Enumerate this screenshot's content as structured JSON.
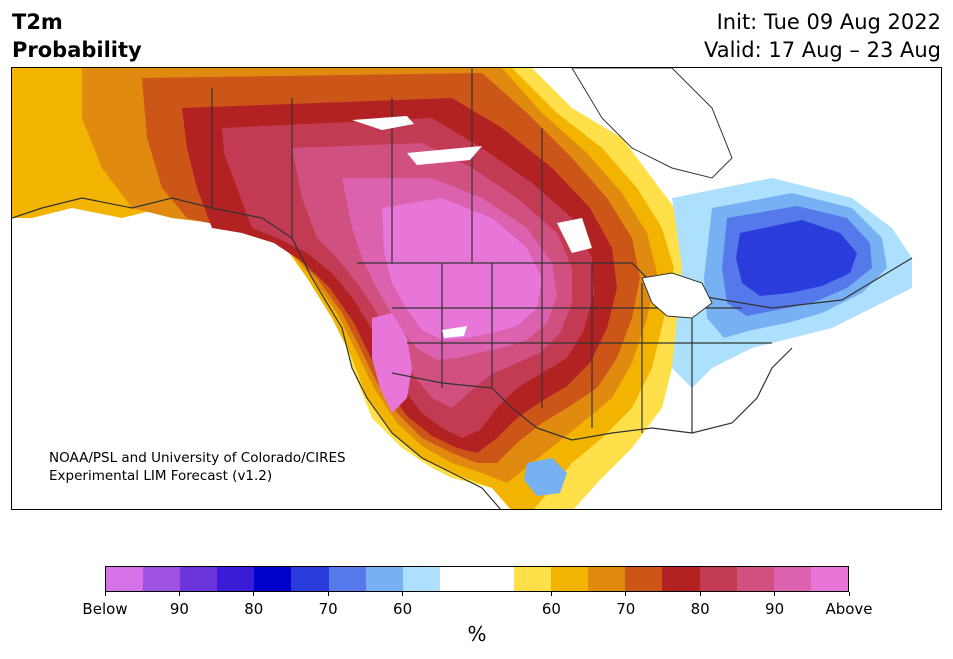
{
  "header": {
    "title_line1": "T2m",
    "title_line2": "Probability",
    "init": "Init: Tue 09 Aug 2022",
    "valid": "Valid: 17 Aug – 23 Aug"
  },
  "credit": {
    "line1": "NOAA/PSL and University of Colorado/CIRES",
    "line2": "Experimental LIM Forecast (v1.2)"
  },
  "colorbar": {
    "unit": "%",
    "colors": [
      "#d672e8",
      "#9d52e0",
      "#6b35d9",
      "#3a1cd6",
      "#0000cc",
      "#2a3ddc",
      "#5578ea",
      "#78b0f4",
      "#ade0fc",
      "#ffffff",
      "#ffffff",
      "#ffe04a",
      "#f2b400",
      "#e08a10",
      "#cc5518",
      "#b22222",
      "#c23b53",
      "#d05080",
      "#dc62b0",
      "#e776d8"
    ],
    "tick_labels": [
      "Below",
      "90",
      "80",
      "70",
      "60",
      "60",
      "70",
      "80",
      "90",
      "Above"
    ]
  },
  "map_colors": {
    "above_low": "#ffe04a",
    "above_60": "#f2b400",
    "above_65": "#e08a10",
    "above_70": "#cc5518",
    "above_75": "#b22222",
    "above_80": "#c23b53",
    "above_85": "#d05080",
    "above_90": "#dc62b0",
    "above_max": "#e776d8",
    "below_low": "#ade0fc",
    "below_60": "#78b0f4",
    "below_70": "#5578ea",
    "below_75": "#2a3ddc",
    "boundary": "#333333"
  }
}
